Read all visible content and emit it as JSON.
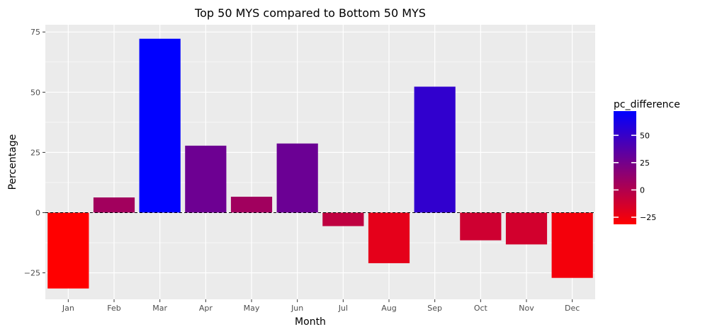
{
  "chart_data": {
    "type": "bar",
    "title": "Top 50 MYS compared to Bottom 50 MYS",
    "xlabel": "Month",
    "ylabel": "Percentage",
    "categories": [
      "Jan",
      "Feb",
      "Mar",
      "Apr",
      "May",
      "Jun",
      "Jul",
      "Aug",
      "Sep",
      "Oct",
      "Nov",
      "Dec"
    ],
    "values": [
      -31.5,
      6.3,
      72.2,
      27.8,
      6.6,
      28.7,
      -5.6,
      -21.0,
      52.3,
      -11.5,
      -13.2,
      -27.1
    ],
    "ylim": [
      -36,
      78
    ],
    "yticks": [
      -25,
      0,
      25,
      50,
      75
    ],
    "ytick_labels": [
      "−25",
      "0",
      "25",
      "50",
      "75"
    ],
    "reference_line": 0,
    "grid": true,
    "legend": {
      "title": "pc_difference",
      "position": "right",
      "type": "colorbar",
      "range": [
        -31.5,
        72.2
      ],
      "ticks": [
        -25,
        0,
        25,
        50
      ],
      "tick_labels": [
        "−25",
        "0",
        "25",
        "50"
      ],
      "low_color": "#ff0000",
      "high_color": "#0000ff"
    },
    "panel_background": "#ebebeb",
    "grid_color": "#ffffff"
  }
}
